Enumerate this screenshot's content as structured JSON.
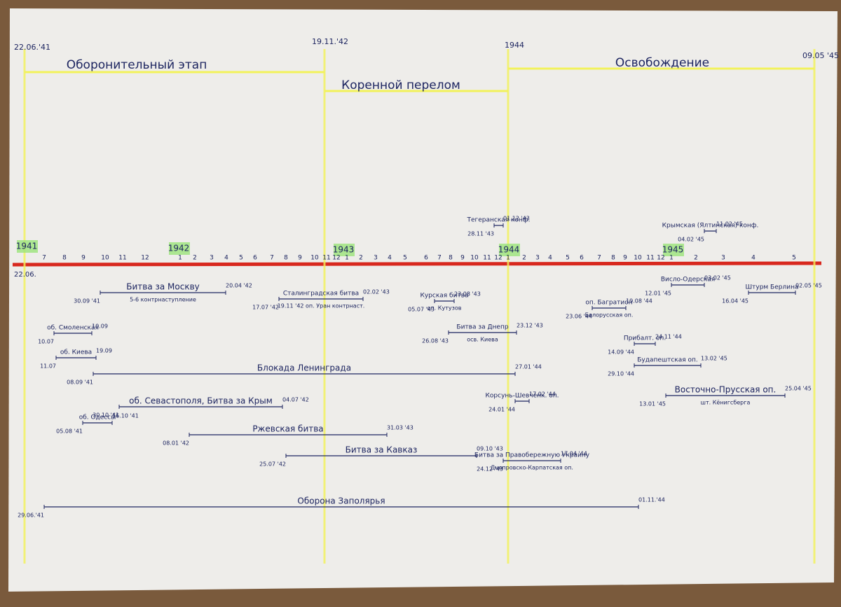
{
  "phases": [
    {
      "label": "Оборонительный этап",
      "date": "22.06.'41"
    },
    {
      "label": "Коренной перелом",
      "date": "19.11.'42"
    },
    {
      "label": "Освобождение",
      "date": "1944"
    }
  ],
  "end_date": "09.05 '45",
  "start_mark": "22.06.",
  "years": [
    "1941",
    "1942",
    "1943",
    "1944",
    "1945"
  ],
  "months": [
    "7",
    "8",
    "9",
    "10",
    "11",
    "12",
    "1",
    "2",
    "3",
    "4",
    "5",
    "6",
    "7",
    "8",
    "9",
    "10",
    "11",
    "12",
    "1",
    "2",
    "3",
    "4",
    "5",
    "6",
    "7",
    "8",
    "9",
    "10",
    "11",
    "12",
    "1",
    "2",
    "3",
    "4",
    "5",
    "6",
    "7",
    "8",
    "9",
    "10",
    "11",
    "12",
    "1",
    "2",
    "3",
    "4",
    "5"
  ],
  "events": [
    {
      "label": "Битва за Москву",
      "start": "30.09 '41",
      "end": "20.04 '42",
      "note": "5-6 контрнаступление"
    },
    {
      "label": "Сталинградская битва",
      "start": "17.07 '42",
      "end": "02.02 '43",
      "note": "19.11 '42 оп. Уран контрнаст."
    },
    {
      "label": "об. Смоленская",
      "start": "10.07",
      "end": "10.09"
    },
    {
      "label": "об. Киева",
      "start": "11.07",
      "end": "19.09"
    },
    {
      "label": "Блокада Ленинграда",
      "start": "08.09 '41",
      "end": "27.01 '44"
    },
    {
      "label": "об. Севастополя, Битва за Крым",
      "start": "30.10 '41",
      "end": "04.07 '42"
    },
    {
      "label": "об. Одессы",
      "start": "05.08 '41",
      "end": "16.10 '41"
    },
    {
      "label": "Ржевская битва",
      "start": "08.01 '42",
      "end": "31.03 '43"
    },
    {
      "label": "Битва за Кавказ",
      "start": "25.07 '42",
      "end": "09.10 '43"
    },
    {
      "label": "Оборона Заполярья",
      "start": "29.06.'41",
      "end": "01.11.'44"
    },
    {
      "label": "Курская битва",
      "start": "05.07 '43",
      "end": "23.08 '43",
      "note": "оп. Кутузов"
    },
    {
      "label": "Битва за Днепр",
      "start": "26.08 '43",
      "end": "23.12 '43",
      "note": "осв. Киева"
    },
    {
      "label": "Тегеранская конф.",
      "start": "28.11 '43",
      "end": "01.12 '43"
    },
    {
      "label": "Крымская (Ялтинская) конф.",
      "start": "04.02 '45",
      "end": "11.02 '45"
    },
    {
      "label": "Корсунь-Шевченк. оп.",
      "start": "24.01 '44",
      "end": "17.02 '44"
    },
    {
      "label": "Битва за Правобережную Украину",
      "start": "24.12 '43",
      "end": "17.04 '44",
      "note": "Днепровско-Карпатская оп."
    },
    {
      "label": "оп. Багратион",
      "start": "23.06 '44",
      "end": "19.08 '44",
      "note": "Белорусская оп."
    },
    {
      "label": "Прибалт. оп.",
      "start": "14.09 '44",
      "end": "24.11 '44"
    },
    {
      "label": "Будапештская оп.",
      "start": "29.10 '44",
      "end": "13.02 '45"
    },
    {
      "label": "Висло-Одерская",
      "start": "12.01 '45",
      "end": "03.02 '45"
    },
    {
      "label": "Штурм Берлина",
      "start": "16.04 '45",
      "end": "02.05 '45"
    },
    {
      "label": "Восточно-Прусская оп.",
      "start": "13.01 '45",
      "end": "25.04 '45",
      "note": "шт. Кёнигсберга"
    }
  ]
}
